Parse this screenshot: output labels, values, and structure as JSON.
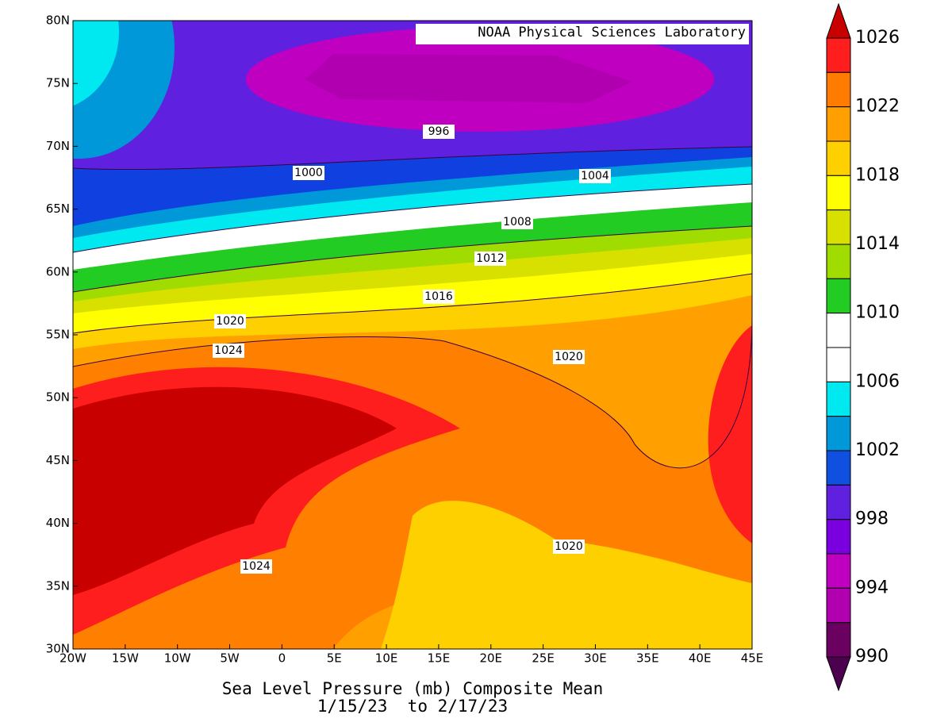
{
  "title": "Sea Level Pressure (mb) Composite Mean",
  "subtitle": "1/15/23  to 2/17/23",
  "credit": "NOAA Physical Sciences Laboratory",
  "x_ticks": [
    "20W",
    "15W",
    "10W",
    "5W",
    "0",
    "5E",
    "10E",
    "15E",
    "20E",
    "25E",
    "30E",
    "35E",
    "40E",
    "45E"
  ],
  "y_ticks": [
    "80N",
    "75N",
    "70N",
    "65N",
    "60N",
    "55N",
    "50N",
    "45N",
    "40N",
    "35N",
    "30N"
  ],
  "contour_labels": [
    996,
    1000,
    1004,
    1008,
    1012,
    1016,
    1020,
    1024,
    1020,
    1020,
    1024
  ],
  "colorbar": {
    "labels": [
      1026,
      1022,
      1018,
      1014,
      1010,
      1006,
      1002,
      998,
      994,
      990
    ],
    "colors": [
      "#c80000",
      "#ff1e1e",
      "#ff7c00",
      "#ffa000",
      "#ffd000",
      "#ffff00",
      "#d8e000",
      "#a0dc00",
      "#22cc22",
      "#ffffff",
      "#ffffff",
      "#00e8f0",
      "#0098d8",
      "#1050e0",
      "#6020e0",
      "#7a00e0",
      "#c000c0",
      "#b000b0",
      "#6a0060",
      "#4b0050"
    ]
  }
}
